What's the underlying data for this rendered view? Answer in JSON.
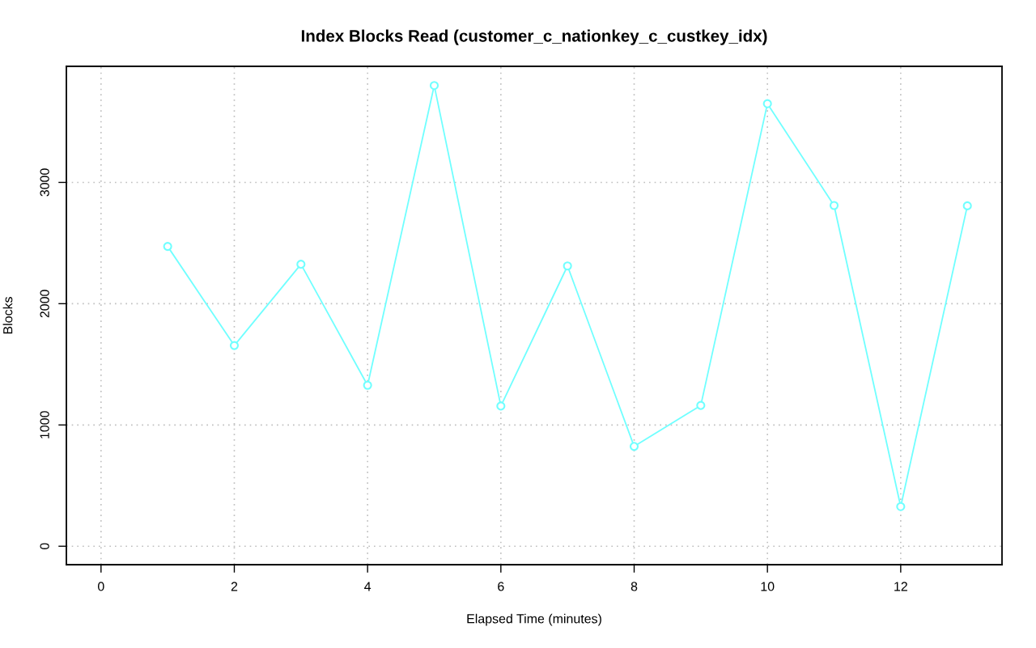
{
  "chart_data": {
    "type": "line",
    "title": "Index Blocks Read (customer_c_nationkey_c_custkey_idx)",
    "xlabel": "Elapsed Time (minutes)",
    "ylabel": "Blocks",
    "x": [
      1,
      2,
      3,
      4,
      5,
      6,
      7,
      8,
      9,
      10,
      11,
      12,
      13
    ],
    "series": [
      {
        "color": "#70ffff",
        "values": [
          2472,
          1655,
          2325,
          1327,
          3799,
          1156,
          2311,
          823,
          1161,
          3649,
          2810,
          327,
          2807
        ]
      }
    ],
    "xlim": [
      -0.52,
      13.52
    ],
    "ylim": [
      -152,
      3957
    ],
    "xticks": [
      0,
      2,
      4,
      6,
      8,
      10,
      12
    ],
    "yticks": [
      0,
      1000,
      2000,
      3000
    ],
    "grid": true,
    "marker": "circle",
    "line_style": "solid"
  }
}
